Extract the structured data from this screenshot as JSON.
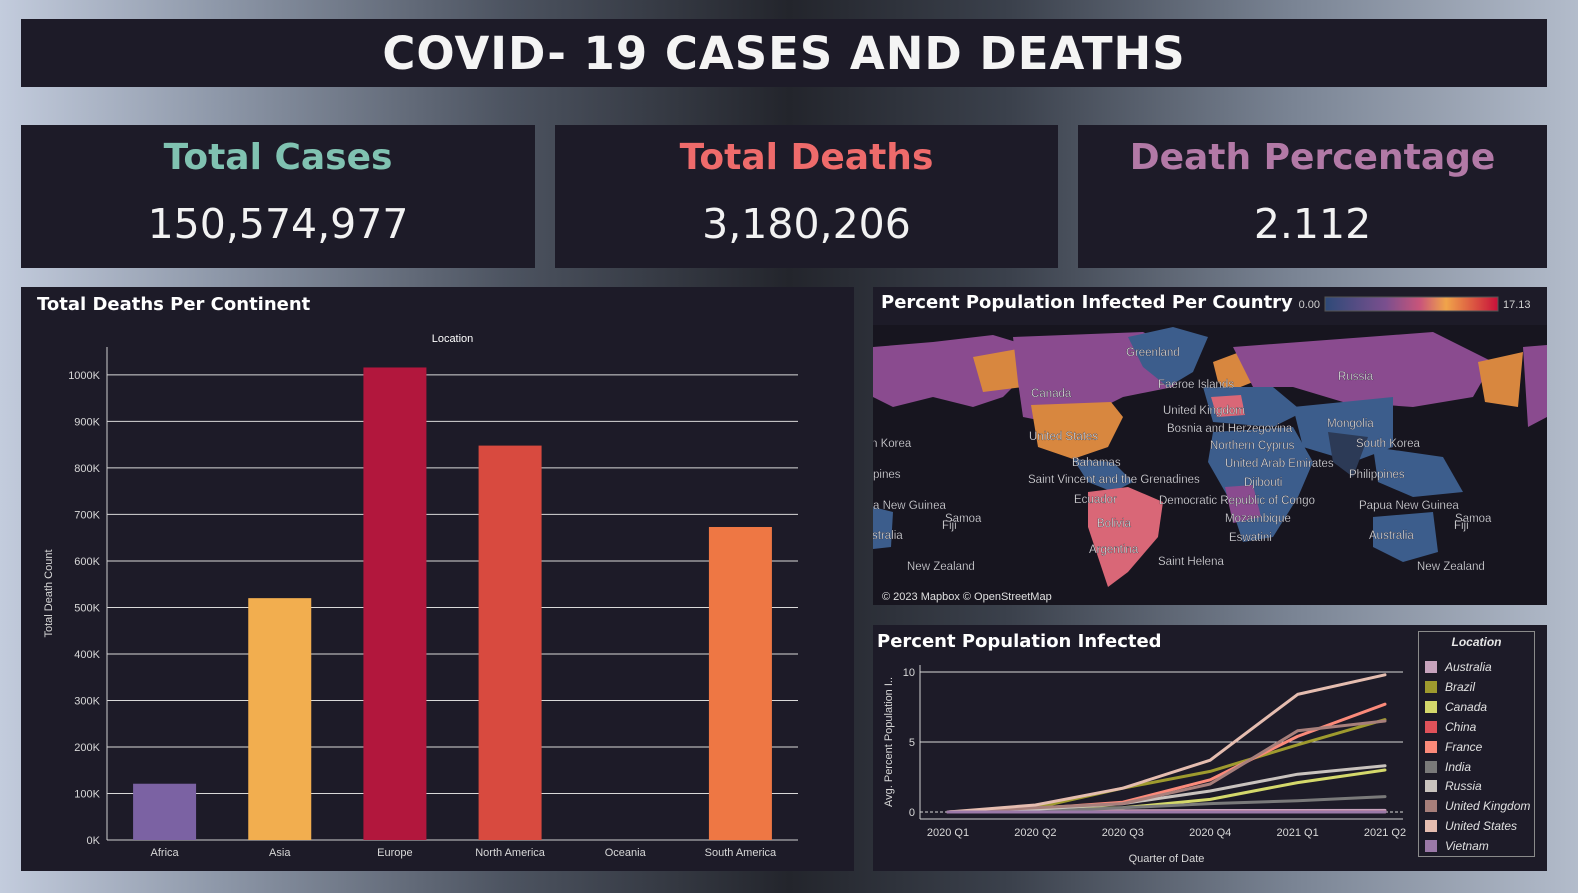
{
  "title": "COVID- 19 CASES AND DEATHS",
  "kpis": {
    "total_cases": {
      "label": "Total Cases",
      "value": "150,574,977",
      "color": "#80c2b1"
    },
    "total_deaths": {
      "label": "Total Deaths",
      "value": "3,180,206",
      "color": "#ee6b6b"
    },
    "death_percentage": {
      "label": "Death Percentage",
      "value": "2.112",
      "color": "#b279a6"
    }
  },
  "bar_panel": {
    "title": "Total Deaths Per Continent"
  },
  "map_panel": {
    "title": "Percent Population Infected Per Country",
    "scale_min": "0.00",
    "scale_max": "17.13",
    "attribution": "© 2023 Mapbox © OpenStreetMap",
    "labels": [
      "Greenland",
      "Faeroe Islands",
      "Canada",
      "Russia",
      "United Kingdom",
      "Bosnia and Herzegovina",
      "Mongolia",
      "United States",
      "Northern Cyprus",
      "South Korea",
      "n Korea",
      "Bahamas",
      "United Arab Emirates",
      "Philippines",
      "pines",
      "Saint Vincent and the Grenadines",
      "Djibouti",
      "Ecuador",
      "Democratic Republic of Congo",
      "a New Guinea",
      "Papua New Guinea",
      "Samoa",
      "Fiji",
      "Samoa",
      "Fiji",
      "Mozambique",
      "Bolivia",
      "stralia",
      "Eswatini",
      "Australia",
      "Argentina",
      "Saint Helena",
      "New Zealand",
      "New Zealand"
    ]
  },
  "line_panel": {
    "title": "Percent Population Infected",
    "legend_title": "Location"
  },
  "colors": {
    "panel_bg": "#1d1b28",
    "grid": "#e6e6e6",
    "text": "#ffffff"
  },
  "chart_data": [
    {
      "type": "bar",
      "title": "Total Deaths Per Continent",
      "header": "Location",
      "xlabel": "",
      "ylabel": "Total Death Count",
      "categories": [
        "Africa",
        "Asia",
        "Europe",
        "North America",
        "Oceania",
        "South America"
      ],
      "values": [
        121000,
        520000,
        1016000,
        848000,
        1000,
        673000
      ],
      "colors": [
        "#7b62a3",
        "#f2ae4f",
        "#b2173d",
        "#d84a3f",
        "#3a3a3a",
        "#ee7744"
      ],
      "ylim": [
        0,
        1060000
      ],
      "yticks": [
        0,
        100000,
        200000,
        300000,
        400000,
        500000,
        600000,
        700000,
        800000,
        900000,
        1000000
      ],
      "ytick_labels": [
        "0K",
        "100K",
        "200K",
        "300K",
        "400K",
        "500K",
        "600K",
        "700K",
        "800K",
        "900K",
        "1000K"
      ],
      "grid": true
    },
    {
      "type": "line",
      "title": "Percent Population Infected",
      "xlabel": "Quarter of Date",
      "ylabel": "Avg. Percent Population I..",
      "x": [
        "2020 Q1",
        "2020 Q2",
        "2020 Q3",
        "2020 Q4",
        "2021 Q1",
        "2021 Q2"
      ],
      "ylim": [
        -0.5,
        10.5
      ],
      "yticks": [
        0,
        5,
        10
      ],
      "grid": true,
      "legend": "right",
      "series": [
        {
          "name": "Australia",
          "color": "#c7a3bd",
          "values": [
            0.0,
            0.02,
            0.08,
            0.11,
            0.11,
            0.12
          ]
        },
        {
          "name": "Brazil",
          "color": "#9e9a2e",
          "values": [
            0.0,
            0.3,
            1.7,
            2.9,
            4.8,
            6.6
          ]
        },
        {
          "name": "Canada",
          "color": "#d4d86b",
          "values": [
            0.0,
            0.2,
            0.3,
            0.9,
            2.1,
            3.0
          ]
        },
        {
          "name": "China",
          "color": "#e0525a",
          "values": [
            0.0,
            0.01,
            0.01,
            0.01,
            0.01,
            0.01
          ]
        },
        {
          "name": "France",
          "color": "#fb8a7a",
          "values": [
            0.0,
            0.25,
            0.7,
            2.3,
            5.4,
            7.7
          ]
        },
        {
          "name": "India",
          "color": "#7a7a7a",
          "values": [
            0.0,
            0.05,
            0.3,
            0.6,
            0.8,
            1.1
          ]
        },
        {
          "name": "Russia",
          "color": "#c9c3be",
          "values": [
            0.0,
            0.2,
            0.6,
            1.5,
            2.7,
            3.3
          ]
        },
        {
          "name": "United Kingdom",
          "color": "#a77f7b",
          "values": [
            0.0,
            0.3,
            0.6,
            2.0,
            5.8,
            6.5
          ]
        },
        {
          "name": "United States",
          "color": "#e5bdb0",
          "values": [
            0.0,
            0.5,
            1.7,
            3.7,
            8.4,
            9.8
          ]
        },
        {
          "name": "Vietnam",
          "color": "#9b79a8",
          "values": [
            0.0,
            0.0,
            0.0,
            0.0,
            0.0,
            0.0
          ]
        }
      ]
    }
  ]
}
